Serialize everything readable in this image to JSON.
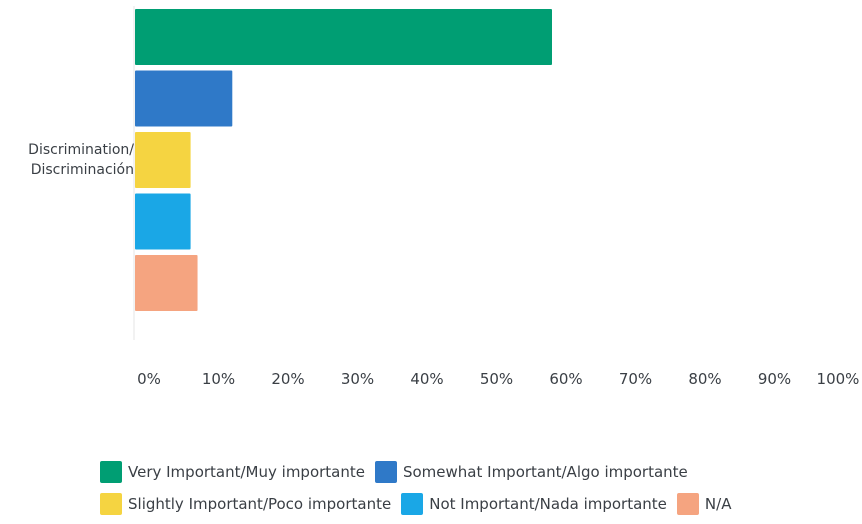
{
  "chart_data": {
    "type": "bar",
    "orientation": "horizontal",
    "categories": [
      "Discrimination/\nDiscriminación"
    ],
    "series": [
      {
        "name": "Very Important/Muy importante",
        "values": [
          60
        ],
        "color": "#009e73"
      },
      {
        "name": "Somewhat Important/Algo importante",
        "values": [
          14
        ],
        "color": "#2f79c8"
      },
      {
        "name": "Slightly Important/Poco importante",
        "values": [
          8
        ],
        "color": "#f5d441"
      },
      {
        "name": "Not Important/Nada importante",
        "values": [
          8
        ],
        "color": "#1aa7e6"
      },
      {
        "name": "N/A",
        "values": [
          9
        ],
        "color": "#f5a480"
      }
    ],
    "xlim": [
      0,
      100
    ],
    "x_ticks": [
      "0%",
      "10%",
      "20%",
      "30%",
      "40%",
      "50%",
      "60%",
      "70%",
      "80%",
      "90%",
      "100%"
    ],
    "grid": false,
    "legend_position": "bottom"
  }
}
